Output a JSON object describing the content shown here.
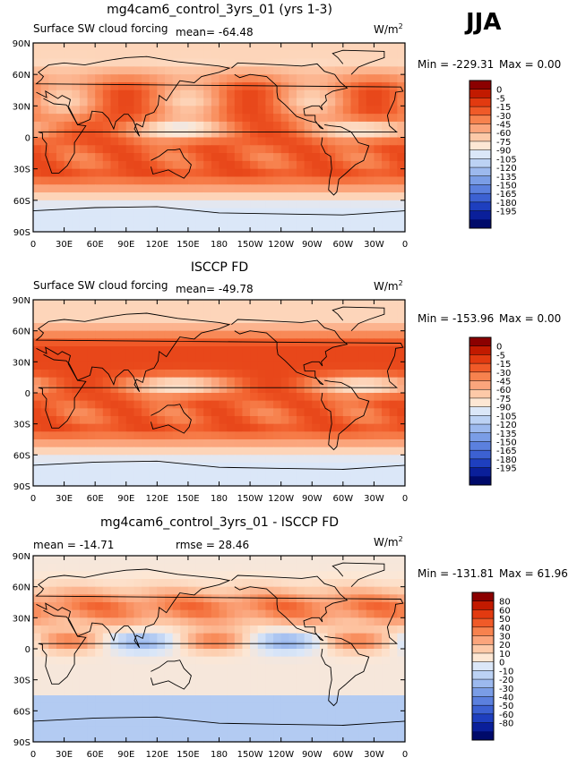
{
  "season": "JJA",
  "unit_base": "W/m",
  "unit_exp": "2",
  "lat_ticks": [
    "90N",
    "60N",
    "30N",
    "0",
    "30S",
    "60S",
    "90S"
  ],
  "lon_ticks": [
    "0",
    "30E",
    "60E",
    "90E",
    "120E",
    "150E",
    "180",
    "150W",
    "120W",
    "90W",
    "60W",
    "30W",
    "0"
  ],
  "chart_data": [
    {
      "type": "heatmap",
      "title": "mg4cam6_control_3yrs_01 (yrs 1-3)",
      "left_label": "Surface SW cloud forcing",
      "center_label": "mean=  -64.48",
      "min_label": "Min =  -229.31",
      "max_label": "Max =     0.00",
      "variable": "Surface SW cloud forcing",
      "mean": -64.48,
      "min": -229.31,
      "max": 0.0,
      "colorbar_levels": [
        "0",
        "-5",
        "-15",
        "-30",
        "-45",
        "-60",
        "-75",
        "-90",
        "-105",
        "-120",
        "-135",
        "-150",
        "-165",
        "-180",
        "-195"
      ],
      "colorbar_colors": [
        "#8b0000",
        "#c21a00",
        "#e23a10",
        "#f05a28",
        "#f7824e",
        "#fba57c",
        "#fdc9a8",
        "#fde7d4",
        "#dbe7f8",
        "#bcd2f4",
        "#9cb9ee",
        "#7a9de6",
        "#5b80de",
        "#3c61d2",
        "#1e3fbf",
        "#0a1f9a",
        "#000a6a"
      ],
      "xlim": [
        0,
        360
      ],
      "ylim": [
        -90,
        90
      ]
    },
    {
      "type": "heatmap",
      "title": "ISCCP FD",
      "left_label": "Surface SW cloud forcing",
      "center_label": "mean=  -49.78",
      "min_label": "Min =  -153.96",
      "max_label": "Max =     0.00",
      "variable": "Surface SW cloud forcing",
      "mean": -49.78,
      "min": -153.96,
      "max": 0.0,
      "colorbar_levels": [
        "0",
        "-5",
        "-15",
        "-30",
        "-45",
        "-60",
        "-75",
        "-90",
        "-105",
        "-120",
        "-135",
        "-150",
        "-165",
        "-180",
        "-195"
      ],
      "colorbar_colors": [
        "#8b0000",
        "#c21a00",
        "#e23a10",
        "#f05a28",
        "#f7824e",
        "#fba57c",
        "#fdc9a8",
        "#fde7d4",
        "#dbe7f8",
        "#bcd2f4",
        "#9cb9ee",
        "#7a9de6",
        "#5b80de",
        "#3c61d2",
        "#1e3fbf",
        "#0a1f9a",
        "#000a6a"
      ],
      "xlim": [
        0,
        360
      ],
      "ylim": [
        -90,
        90
      ]
    },
    {
      "type": "heatmap",
      "title": "mg4cam6_control_3yrs_01 - ISCCP FD",
      "left_label": "mean =  -14.71",
      "center_label": "rmse =   28.46",
      "min_label": "Min =  -131.81",
      "max_label": "Max =   61.96",
      "mean": -14.71,
      "rmse": 28.46,
      "min": -131.81,
      "max": 61.96,
      "colorbar_levels": [
        "80",
        "60",
        "50",
        "40",
        "30",
        "20",
        "10",
        "0",
        "-10",
        "-20",
        "-30",
        "-40",
        "-50",
        "-60",
        "-80"
      ],
      "colorbar_colors": [
        "#8b0000",
        "#c21a00",
        "#e23a10",
        "#f05a28",
        "#f7824e",
        "#fba57c",
        "#fdc9a8",
        "#fde7d4",
        "#dbe7f8",
        "#bcd2f4",
        "#9cb9ee",
        "#7a9de6",
        "#5b80de",
        "#3c61d2",
        "#1e3fbf",
        "#0a1f9a",
        "#000a6a"
      ],
      "xlim": [
        0,
        360
      ],
      "ylim": [
        -90,
        90
      ]
    }
  ]
}
